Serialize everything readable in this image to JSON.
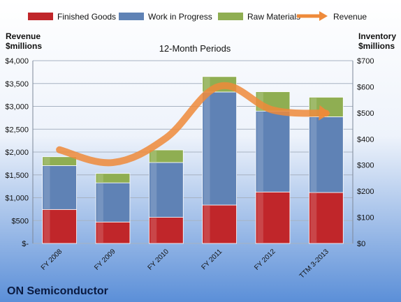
{
  "company": "ON Semiconductor",
  "colors": {
    "finished_goods": "#c0262a",
    "work_in_progress": "#5f82b5",
    "raw_materials": "#8fae52",
    "revenue": "#ee8a3a",
    "background_top": "#ffffff",
    "background_bottom": "#5b8fd8"
  },
  "chart_data": {
    "type": "bar",
    "subtitle": "12-Month Periods",
    "categories": [
      "FY 2008",
      "FY 2009",
      "FY 2010",
      "FY 2011",
      "FY 2012",
      "TTM 3-2013"
    ],
    "series": [
      {
        "name": "Finished Goods",
        "axis": "right",
        "stacked": true,
        "values": [
          130,
          82,
          100,
          147,
          197,
          195
        ]
      },
      {
        "name": "Work in Progress",
        "axis": "right",
        "stacked": true,
        "values": [
          168,
          150,
          210,
          433,
          310,
          290
        ]
      },
      {
        "name": "Raw Materials",
        "axis": "right",
        "stacked": true,
        "values": [
          34,
          36,
          48,
          59,
          74,
          75
        ]
      },
      {
        "name": "Revenue",
        "axis": "left",
        "type": "line",
        "values": [
          2050,
          1770,
          2310,
          3440,
          2920,
          2850
        ]
      }
    ],
    "left_axis": {
      "label_line1": "Revenue",
      "label_line2": "$millions",
      "ylim": [
        0,
        4000
      ],
      "ticks": [
        {
          "value": 4000,
          "label": "$4,000"
        },
        {
          "value": 3500,
          "label": "$3,500"
        },
        {
          "value": 3000,
          "label": "$3,000"
        },
        {
          "value": 2500,
          "label": "$2,500"
        },
        {
          "value": 2000,
          "label": "$2,000"
        },
        {
          "value": 1500,
          "label": "$1,500"
        },
        {
          "value": 1000,
          "label": "$1,000"
        },
        {
          "value": 500,
          "label": "$500"
        },
        {
          "value": 0,
          "label": "$-"
        }
      ]
    },
    "right_axis": {
      "label_line1": "Inventory",
      "label_line2": "$millions",
      "ylim": [
        0,
        700
      ],
      "ticks": [
        {
          "value": 700,
          "label": "$700"
        },
        {
          "value": 600,
          "label": "$600"
        },
        {
          "value": 500,
          "label": "$500"
        },
        {
          "value": 400,
          "label": "$400"
        },
        {
          "value": 300,
          "label": "$300"
        },
        {
          "value": 200,
          "label": "$200"
        },
        {
          "value": 100,
          "label": "$100"
        },
        {
          "value": 0,
          "label": "$0"
        }
      ]
    },
    "grid": true,
    "legend_position": "top"
  }
}
